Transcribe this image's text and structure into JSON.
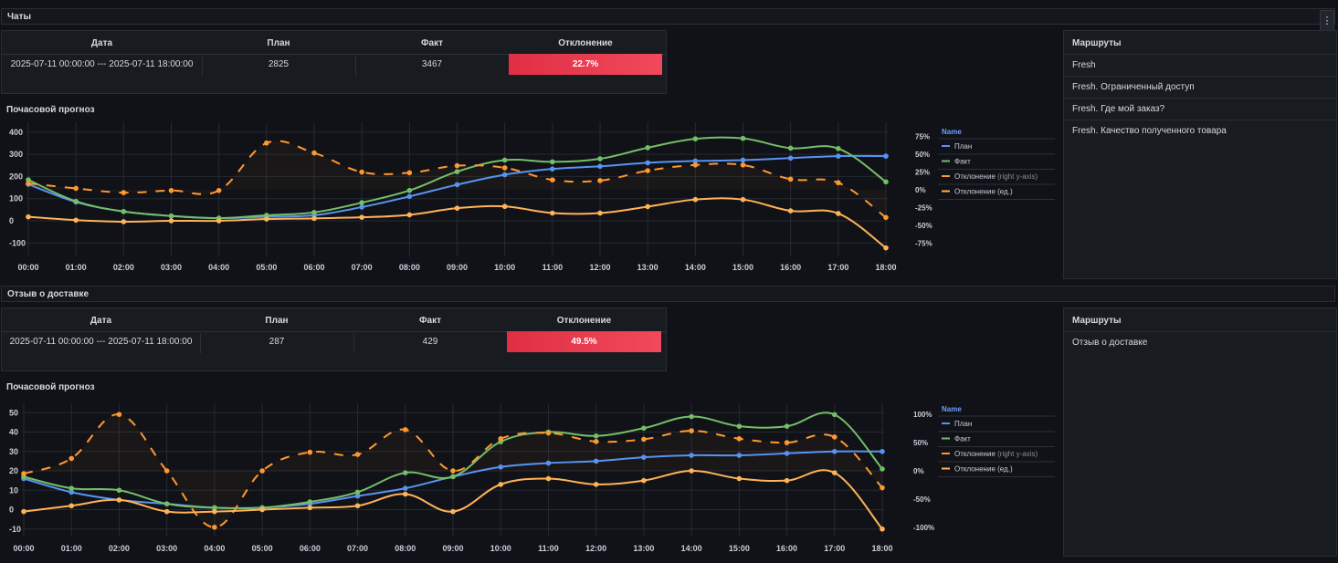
{
  "sections": [
    {
      "title": "Чаты",
      "table": {
        "headers": [
          "Дата",
          "План",
          "Факт",
          "Отклонение"
        ],
        "row": [
          "2025-07-11 00:00:00 --- 2025-07-11 18:00:00",
          "2825",
          "3467",
          "22.7%"
        ]
      },
      "chart_title": "Почасовой прогноз",
      "routes_title": "Маршруты",
      "routes": [
        "Fresh",
        "Fresh. Ограниченный доступ",
        "Fresh. Где мой заказ?",
        "Fresh. Качество полученного товара"
      ]
    },
    {
      "title": "Отзыв о доставке",
      "table": {
        "headers": [
          "Дата",
          "План",
          "Факт",
          "Отклонение"
        ],
        "row": [
          "2025-07-11 00:00:00 --- 2025-07-11 18:00:00",
          "287",
          "429",
          "49.5%"
        ]
      },
      "chart_title": "Почасовой прогноз",
      "routes_title": "Маршруты",
      "routes": [
        "Отзыв о доставке"
      ]
    }
  ],
  "menu_icon": "kebab-menu-icon",
  "colors": {
    "plan": "#5794f2",
    "fact": "#73bf69",
    "deviation_pct": "#ff9830",
    "deviation_units": "#ffb357",
    "deviation_cell": "#e02f44"
  },
  "chart_data": [
    {
      "type": "line",
      "x": [
        "00:00",
        "01:00",
        "02:00",
        "03:00",
        "04:00",
        "05:00",
        "06:00",
        "07:00",
        "08:00",
        "09:00",
        "10:00",
        "11:00",
        "12:00",
        "13:00",
        "14:00",
        "15:00",
        "16:00",
        "17:00",
        "18:00"
      ],
      "left_ticks": [
        "400",
        "300",
        "200",
        "100",
        "0",
        "-100"
      ],
      "right_ticks": [
        "75%",
        "50%",
        "25%",
        "0%",
        "-25%",
        "-50%",
        "-75%"
      ],
      "ylim": [
        -140,
        420
      ],
      "y2lim": [
        -0.875,
        0.875
      ],
      "legend_title": "Name",
      "legend": [
        "План",
        "Факт",
        "Отклонение",
        "Отклонение (ед.)"
      ],
      "legend_suffix": " (right y-axis)",
      "series": [
        {
          "name": "План",
          "axis": "left",
          "style": "solid",
          "values": [
            165,
            85,
            42,
            22,
            12,
            18,
            25,
            62,
            110,
            163,
            208,
            234,
            246,
            262,
            270,
            274,
            283,
            292,
            292
          ]
        },
        {
          "name": "Факт",
          "axis": "left",
          "style": "solid",
          "values": [
            185,
            88,
            42,
            22,
            12,
            25,
            38,
            82,
            137,
            222,
            274,
            266,
            280,
            330,
            370,
            372,
            328,
            326,
            176
          ]
        },
        {
          "name": "Отклонение",
          "axis": "right",
          "style": "dashed",
          "values": [
            0.09,
            0.02,
            -0.04,
            -0.01,
            -0.01,
            0.66,
            0.52,
            0.25,
            0.24,
            0.34,
            0.31,
            0.14,
            0.13,
            0.27,
            0.35,
            0.35,
            0.15,
            0.1,
            -0.39
          ]
        },
        {
          "name": "Отклонение (ед.)",
          "axis": "left",
          "style": "solid",
          "values": [
            18,
            3,
            -4,
            0,
            0,
            8,
            11,
            16,
            27,
            57,
            65,
            35,
            35,
            64,
            96,
            96,
            45,
            33,
            -122
          ]
        }
      ]
    },
    {
      "type": "line",
      "x": [
        "00:00",
        "01:00",
        "02:00",
        "03:00",
        "04:00",
        "05:00",
        "06:00",
        "07:00",
        "08:00",
        "09:00",
        "10:00",
        "11:00",
        "12:00",
        "13:00",
        "14:00",
        "15:00",
        "16:00",
        "17:00",
        "18:00"
      ],
      "left_ticks": [
        "50",
        "40",
        "30",
        "20",
        "10",
        "0",
        "-10"
      ],
      "right_ticks": [
        "100%",
        "50%",
        "0%",
        "-50%",
        "-100%"
      ],
      "ylim": [
        -12,
        52
      ],
      "y2lim": [
        -1.1,
        1.1
      ],
      "legend_title": "Name",
      "legend": [
        "План",
        "Факт",
        "Отклонение",
        "Отклонение (ед.)"
      ],
      "legend_suffix": " (right y-axis)",
      "series": [
        {
          "name": "План",
          "axis": "left",
          "style": "solid",
          "values": [
            16,
            9,
            5,
            3,
            1,
            1,
            3,
            7,
            11,
            17,
            22,
            24,
            25,
            27,
            28,
            28,
            29,
            30,
            30
          ]
        },
        {
          "name": "Факт",
          "axis": "left",
          "style": "solid",
          "values": [
            17,
            11,
            10,
            3,
            1,
            1,
            4,
            9,
            19,
            17,
            35,
            40,
            38,
            42,
            48,
            43,
            43,
            49,
            21
          ]
        },
        {
          "name": "Отклонение",
          "axis": "right",
          "style": "dashed",
          "values": [
            -0.05,
            0.22,
            1.0,
            0.0,
            -1.0,
            0.0,
            0.33,
            0.29,
            0.73,
            0.0,
            0.57,
            0.67,
            0.52,
            0.56,
            0.71,
            0.57,
            0.5,
            0.6,
            -0.3
          ]
        },
        {
          "name": "Отклонение (ед.)",
          "axis": "left",
          "style": "solid",
          "values": [
            -1,
            2,
            5,
            -1,
            -1,
            0,
            1,
            2,
            8,
            -1,
            13,
            16,
            13,
            15,
            20,
            16,
            15,
            19,
            -10
          ]
        }
      ]
    }
  ]
}
